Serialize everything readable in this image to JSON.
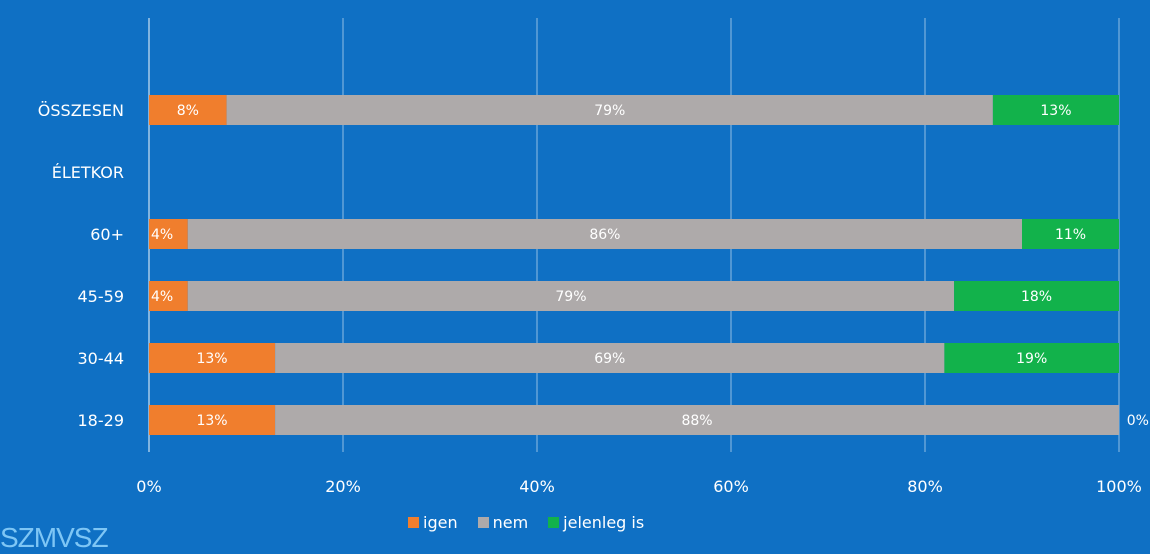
{
  "chart_data": {
    "type": "bar",
    "orientation": "horizontal",
    "stacked": "100%",
    "categories": [
      "ÖSSZESEN",
      "ÉLETKOR",
      "60+",
      "45-59",
      "30-44",
      "18-29"
    ],
    "series": [
      {
        "name": "igen",
        "color": "#f07e2d",
        "values": [
          8,
          null,
          4,
          4,
          13,
          13
        ]
      },
      {
        "name": "nem",
        "color": "#aeaaaa",
        "values": [
          79,
          null,
          86,
          79,
          69,
          88
        ]
      },
      {
        "name": "jelenleg is",
        "color": "#12b24b",
        "values": [
          13,
          null,
          11,
          18,
          19,
          0
        ]
      }
    ],
    "data_labels": [
      [
        "8%",
        "79%",
        "13%"
      ],
      [
        "",
        "",
        ""
      ],
      [
        "4%",
        "86%",
        "11%"
      ],
      [
        "4%",
        "79%",
        "18%"
      ],
      [
        "13%",
        "69%",
        "19%"
      ],
      [
        "13%",
        "88%",
        "0%"
      ]
    ],
    "x_ticks": [
      "0%",
      "20%",
      "40%",
      "60%",
      "80%",
      "100%"
    ],
    "xlim": [
      0,
      100
    ],
    "grid": true,
    "legend_position": "bottom"
  },
  "logo_text": "SZMVSZ"
}
